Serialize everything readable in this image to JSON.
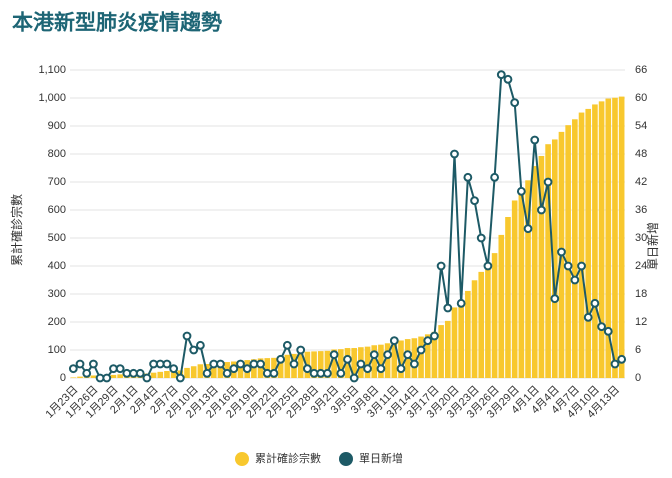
{
  "chart_data": {
    "type": "bar-line",
    "title": "本港新型肺炎疫情趨勢",
    "y_label": "累計確診宗數",
    "y2_label": "單日新增",
    "categories": [
      "1月23日",
      null,
      null,
      "1月26日",
      null,
      null,
      "1月29日",
      null,
      null,
      "2月1日",
      null,
      null,
      "2月4日",
      null,
      null,
      "2月7日",
      null,
      null,
      "2月10日",
      null,
      null,
      "2月13日",
      null,
      null,
      "2月16日",
      null,
      null,
      "2月19日",
      null,
      null,
      "2月22日",
      null,
      null,
      "2月25日",
      null,
      null,
      "2月28日",
      null,
      null,
      "3月2日",
      null,
      null,
      "3月5日",
      null,
      null,
      "3月8日",
      null,
      null,
      "3月11日",
      null,
      null,
      "3月14日",
      null,
      null,
      "3月17日",
      null,
      null,
      "3月20日",
      null,
      null,
      "3月23日",
      null,
      null,
      "3月26日",
      null,
      null,
      "3月29日",
      null,
      null,
      "4月1日",
      null,
      null,
      "4月4日",
      null,
      null,
      "4月7日",
      null,
      null,
      "4月10日",
      null,
      null,
      "4月13日",
      null
    ],
    "series": [
      {
        "name": "累計確診宗數",
        "color": "#f8c82e",
        "axis": "y",
        "values": [
          2,
          5,
          6,
          9,
          9,
          9,
          11,
          13,
          14,
          15,
          16,
          16,
          19,
          22,
          25,
          27,
          27,
          36,
          42,
          49,
          50,
          53,
          56,
          57,
          59,
          62,
          64,
          67,
          70,
          71,
          72,
          76,
          83,
          86,
          92,
          94,
          95,
          96,
          97,
          102,
          103,
          107,
          107,
          110,
          112,
          117,
          119,
          124,
          132,
          134,
          139,
          142,
          148,
          156,
          165,
          189,
          204,
          252,
          268,
          311,
          349,
          379,
          403,
          446,
          511,
          575,
          634,
          674,
          706,
          757,
          793,
          835,
          852,
          879,
          903,
          924,
          948,
          961,
          977,
          988,
          998,
          1001,
          1005
        ]
      },
      {
        "name": "單日新增",
        "color": "#1d5a66",
        "axis": "y2",
        "values": [
          2,
          3,
          1,
          3,
          0,
          0,
          2,
          2,
          1,
          1,
          1,
          0,
          3,
          3,
          3,
          2,
          0,
          9,
          6,
          7,
          1,
          3,
          3,
          1,
          2,
          3,
          2,
          3,
          3,
          1,
          1,
          4,
          7,
          3,
          6,
          2,
          1,
          1,
          1,
          5,
          1,
          4,
          0,
          3,
          2,
          5,
          2,
          5,
          8,
          2,
          5,
          3,
          6,
          8,
          9,
          24,
          15,
          48,
          16,
          43,
          38,
          30,
          24,
          43,
          65,
          64,
          59,
          40,
          32,
          51,
          36,
          42,
          17,
          27,
          24,
          21,
          24,
          13,
          16,
          11,
          10,
          3,
          4
        ]
      }
    ],
    "ylim": [
      0,
      1100
    ],
    "yticks": [
      0,
      100,
      200,
      300,
      400,
      500,
      600,
      700,
      800,
      900,
      {
        "value": 1000,
        "label": "1,000"
      },
      {
        "value": 1100,
        "label": "1,100"
      }
    ],
    "y2lim": [
      0,
      66
    ],
    "y2ticks": [
      0,
      6,
      12,
      18,
      24,
      30,
      36,
      42,
      48,
      54,
      60,
      66
    ],
    "grid": true
  }
}
